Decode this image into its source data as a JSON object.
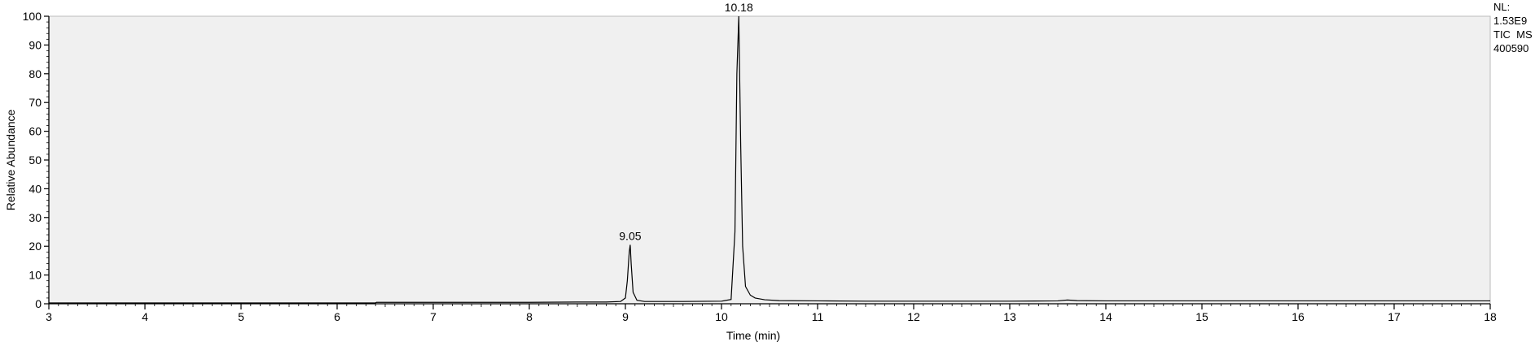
{
  "chart_data": {
    "type": "line",
    "title": "",
    "xlabel": "Time (min)",
    "ylabel": "Relative Abundance",
    "xlim": [
      3,
      18
    ],
    "ylim": [
      0,
      100
    ],
    "x_ticks": [
      3,
      4,
      5,
      6,
      7,
      8,
      9,
      10,
      11,
      12,
      13,
      14,
      15,
      16,
      17,
      18
    ],
    "y_ticks": [
      0,
      10,
      20,
      30,
      40,
      50,
      60,
      70,
      80,
      90,
      100
    ],
    "grid": false,
    "colors": {
      "plot_background": "#f0f0f0",
      "trace": "#000000",
      "axes": "#000000"
    },
    "info": {
      "nl_label": "NL:",
      "nl_value": "1.53E9",
      "scan_filter": "TIC  MS",
      "file_name": "400590"
    },
    "peak_labels": [
      {
        "x": 9.05,
        "y": 20.5,
        "label": "9.05"
      },
      {
        "x": 10.18,
        "y": 100,
        "label": "10.18"
      }
    ],
    "series": [
      {
        "values": [
          [
            3.0,
            0.3
          ],
          [
            3.5,
            0.3
          ],
          [
            4.0,
            0.3
          ],
          [
            4.5,
            0.3
          ],
          [
            5.0,
            0.3
          ],
          [
            5.5,
            0.3
          ],
          [
            6.0,
            0.3
          ],
          [
            6.4,
            0.3
          ],
          [
            6.41,
            0.5
          ],
          [
            7.0,
            0.5
          ],
          [
            7.5,
            0.5
          ],
          [
            8.0,
            0.5
          ],
          [
            8.5,
            0.6
          ],
          [
            8.8,
            0.6
          ],
          [
            8.95,
            0.8
          ],
          [
            9.0,
            2.0
          ],
          [
            9.02,
            8.0
          ],
          [
            9.04,
            18.0
          ],
          [
            9.05,
            20.5
          ],
          [
            9.06,
            14.0
          ],
          [
            9.08,
            4.0
          ],
          [
            9.12,
            1.2
          ],
          [
            9.2,
            0.8
          ],
          [
            9.6,
            0.8
          ],
          [
            10.0,
            0.9
          ],
          [
            10.1,
            1.5
          ],
          [
            10.14,
            25.0
          ],
          [
            10.16,
            80.0
          ],
          [
            10.18,
            100.0
          ],
          [
            10.2,
            55.0
          ],
          [
            10.22,
            20.0
          ],
          [
            10.25,
            6.0
          ],
          [
            10.3,
            3.0
          ],
          [
            10.35,
            2.0
          ],
          [
            10.45,
            1.4
          ],
          [
            10.6,
            1.1
          ],
          [
            11.0,
            1.0
          ],
          [
            11.5,
            0.9
          ],
          [
            12.0,
            0.9
          ],
          [
            12.5,
            0.9
          ],
          [
            13.0,
            0.9
          ],
          [
            13.5,
            1.0
          ],
          [
            13.6,
            1.3
          ],
          [
            13.7,
            1.1
          ],
          [
            14.0,
            1.0
          ],
          [
            15.0,
            1.0
          ],
          [
            16.0,
            1.0
          ],
          [
            17.0,
            1.0
          ],
          [
            18.0,
            1.0
          ]
        ]
      }
    ]
  }
}
